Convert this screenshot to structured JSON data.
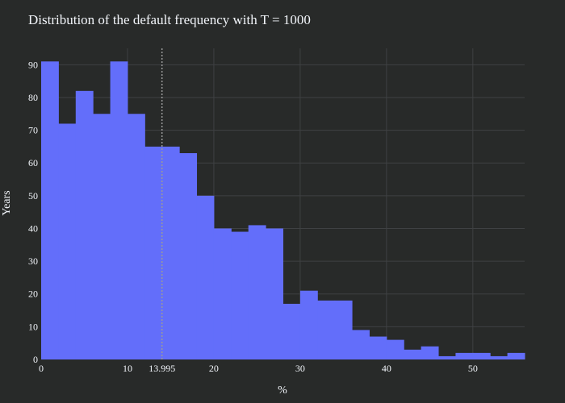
{
  "chart_data": {
    "type": "bar",
    "title": "Distribution of the default frequency with T = 1000",
    "xlabel": "%",
    "ylabel": "Years",
    "bin_width": 2,
    "bin_starts": [
      0,
      2,
      4,
      6,
      8,
      10,
      12,
      14,
      16,
      18,
      20,
      22,
      24,
      26,
      28,
      30,
      32,
      34,
      36,
      38,
      40,
      42,
      44,
      46,
      48,
      50,
      52,
      54
    ],
    "values": [
      91,
      72,
      82,
      75,
      91,
      75,
      65,
      65,
      63,
      50,
      40,
      39,
      41,
      40,
      17,
      21,
      18,
      18,
      9,
      7,
      6,
      3,
      4,
      1,
      2,
      2,
      1,
      2
    ],
    "xlim": [
      0,
      56
    ],
    "ylim": [
      0,
      95
    ],
    "x_ticks": [
      0,
      10,
      20,
      30,
      40,
      50
    ],
    "y_ticks": [
      0,
      10,
      20,
      30,
      40,
      50,
      60,
      70,
      80,
      90
    ],
    "reference_line": {
      "x": 13.995,
      "label": "13.995",
      "style": "dotted"
    },
    "grid": true,
    "colors": {
      "bar": "#636efa",
      "background": "#282a29",
      "grid": "#3f4143",
      "reference_line": "#9a9a9a",
      "text": "#f2f5fa"
    }
  }
}
